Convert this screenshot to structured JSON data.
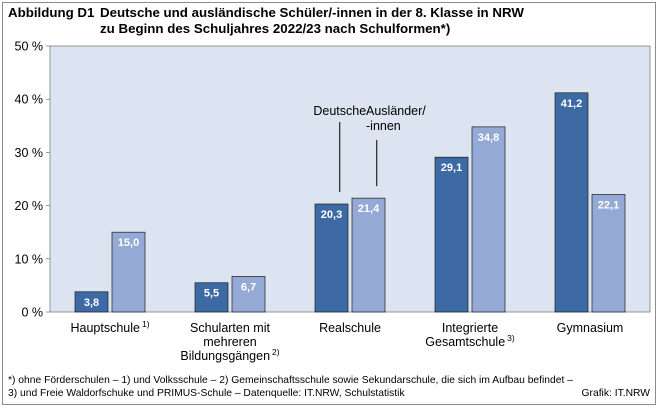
{
  "header": {
    "prefix": "Abbildung D1",
    "line1": "Deutsche und ausländische Schüler/-innen in der 8. Klasse in NRW",
    "line2": "zu Beginn des Schuljahres 2022/23 nach Schulformen*)"
  },
  "chart_data": {
    "type": "bar",
    "categories": [
      {
        "lines": [
          "Hauptschule"
        ],
        "sup": "1)"
      },
      {
        "lines": [
          "Schularten mit",
          "mehreren",
          "Bildungsgängen"
        ],
        "sup": "2)"
      },
      {
        "lines": [
          "Realschule"
        ],
        "sup": ""
      },
      {
        "lines": [
          "Integrierte",
          "Gesamtschule"
        ],
        "sup": "3)"
      },
      {
        "lines": [
          "Gymnasium"
        ],
        "sup": ""
      }
    ],
    "series": [
      {
        "name": "Deutsche",
        "color": "#3d6aa5",
        "values": [
          3.8,
          5.5,
          20.3,
          29.1,
          41.2
        ],
        "labels": [
          "3,8",
          "5,5",
          "20,3",
          "29,1",
          "41,2"
        ]
      },
      {
        "name": "Ausländer/-innen",
        "name_lines": [
          "Ausländer/",
          "-innen"
        ],
        "color": "#94aad4",
        "values": [
          15.0,
          6.7,
          21.4,
          34.8,
          22.1
        ],
        "labels": [
          "15,0",
          "6,7",
          "21,4",
          "34,8",
          "22,1"
        ]
      }
    ],
    "ylim": [
      0,
      50
    ],
    "yticks": [
      0,
      10,
      20,
      30,
      40,
      50
    ],
    "ytick_labels": [
      "0 %",
      "10 %",
      "20 %",
      "30 %",
      "40 %",
      "50 %"
    ],
    "plot_background": "#dbe4f0",
    "grid": false,
    "legend": "callout-labels-on-Realschule"
  },
  "footnote": {
    "line1": "*) ohne Förderschulen – 1) und Volksschule – 2) Gemeinschaftsschule sowie Sekundarschule, die sich im Aufbau befindet –",
    "line2": "3) und Freie Waldorfschuke und PRIMUS-Schule – Datenquelle: IT.NRW, Schulstatistik"
  },
  "credit": "Grafik: IT.NRW"
}
